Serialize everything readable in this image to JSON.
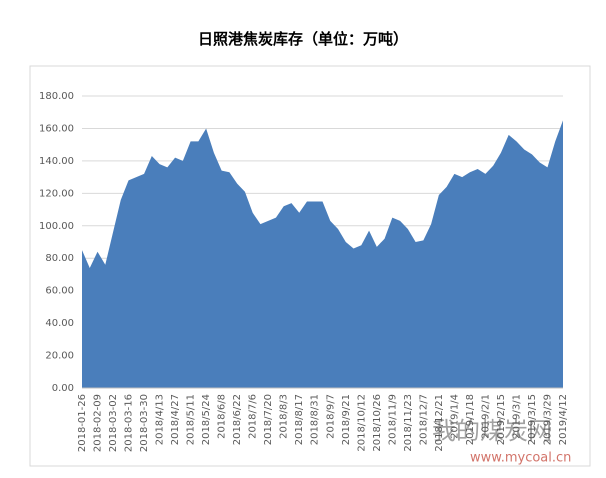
{
  "chart_data": {
    "type": "area",
    "title": "日照港焦炭库存（单位：万吨）",
    "x": [
      "2018-01-26",
      null,
      "2018-02-09",
      null,
      "2018-03-02",
      null,
      "2018-03-16",
      null,
      "2018-03-30",
      null,
      "2018/4/13",
      null,
      "2018/4/27",
      null,
      "2018/5/11",
      null,
      "2018/5/24",
      null,
      "2018/6/8",
      null,
      "2018/6/22",
      null,
      "2018/7/6",
      null,
      "2018/7/20",
      null,
      "2018/8/3",
      null,
      "2018/8/17",
      null,
      "2018/8/31",
      null,
      "2018/9/7",
      null,
      "2018/9/21",
      null,
      "2018/10/12",
      null,
      "2018/10/26",
      null,
      "2018/11/9",
      null,
      "2018/11/23",
      null,
      "2018/12/7",
      null,
      "2018/12/21",
      null,
      "2019/1/4",
      null,
      "2019/1/18",
      null,
      "2019/2/1",
      null,
      "2019/2/15",
      null,
      "2019/3/1",
      null,
      "2019/3/15",
      null,
      "2019/3/29",
      null,
      "2019/4/12"
    ],
    "values": [
      85,
      74,
      84,
      76,
      96,
      116,
      128,
      130,
      132,
      143,
      138,
      136,
      142,
      140,
      152,
      152,
      160,
      145,
      134,
      133,
      126,
      121,
      108,
      101,
      103,
      105,
      112,
      114,
      108,
      115,
      115,
      115,
      103,
      98,
      90,
      86,
      88,
      97,
      87,
      92,
      105,
      103,
      98,
      90,
      91,
      101,
      119,
      124,
      132,
      130,
      133,
      135,
      132,
      137,
      145,
      156,
      152,
      147,
      144,
      139,
      136,
      152,
      165
    ],
    "color": "#4a7ebb",
    "ylim": [
      0,
      180
    ],
    "yticks": [
      {
        "value": 0,
        "label": "0.00"
      },
      {
        "value": 20,
        "label": "20.00"
      },
      {
        "value": 40,
        "label": "40.00"
      },
      {
        "value": 60,
        "label": "60.00"
      },
      {
        "value": 80,
        "label": "80.00"
      },
      {
        "value": 100,
        "label": "100.00"
      },
      {
        "value": 120,
        "label": "120.00"
      },
      {
        "value": 140,
        "label": "140.00"
      },
      {
        "value": 160,
        "label": "160.00"
      },
      {
        "value": 180,
        "label": "180.00"
      }
    ],
    "grid": true
  },
  "watermark": {
    "text": "我的煤炭网",
    "url": "www.mycoal.cn"
  }
}
